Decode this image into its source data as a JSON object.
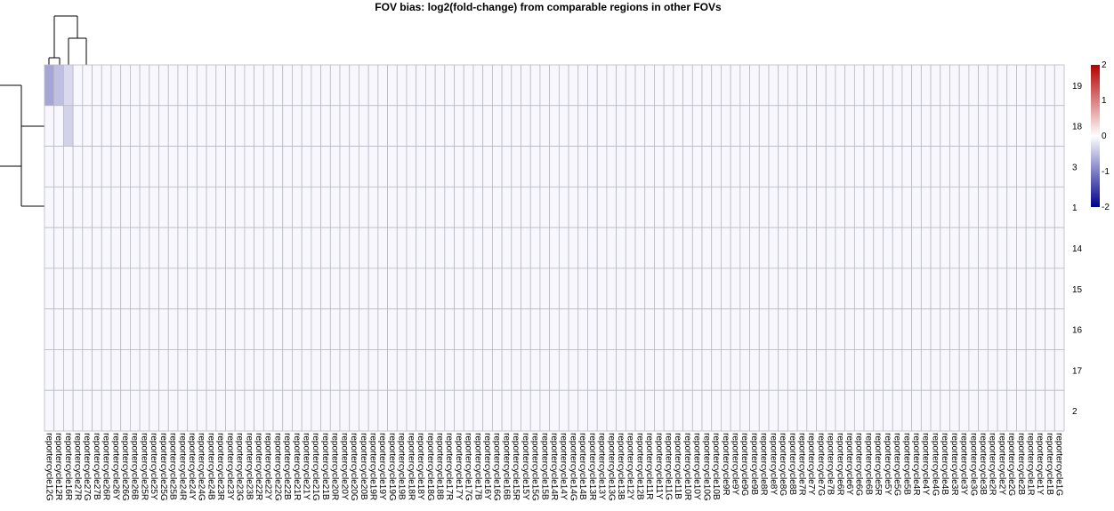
{
  "chart_data": {
    "type": "heatmap",
    "title": "FOV bias: log2(fold-change) from comparable regions in other FOVs",
    "rows": [
      "19",
      "18",
      "3",
      "1",
      "14",
      "15",
      "16",
      "17",
      "2"
    ],
    "columns": [
      "reportercycle12G",
      "reportercycle12R",
      "reportercycle16R",
      "reportercycle27R",
      "reportercycle27G",
      "reportercycle27B",
      "reportercycle26R",
      "reportercycle26Y",
      "reportercycle26G",
      "reportercycle26B",
      "reportercycle25R",
      "reportercycle25Y",
      "reportercycle25G",
      "reportercycle25B",
      "reportercycle24R",
      "reportercycle24Y",
      "reportercycle24G",
      "reportercycle24B",
      "reportercycle23R",
      "reportercycle23Y",
      "reportercycle23G",
      "reportercycle23B",
      "reportercycle22R",
      "reportercycle22Y",
      "reportercycle22G",
      "reportercycle22B",
      "reportercycle21R",
      "reportercycle21Y",
      "reportercycle21G",
      "reportercycle21B",
      "reportercycle20R",
      "reportercycle20Y",
      "reportercycle20G",
      "reportercycle20B",
      "reportercycle19R",
      "reportercycle19Y",
      "reportercycle19G",
      "reportercycle19B",
      "reportercycle18R",
      "reportercycle18Y",
      "reportercycle18G",
      "reportercycle18B",
      "reportercycle17R",
      "reportercycle17Y",
      "reportercycle17G",
      "reportercycle17B",
      "reportercycle16Y",
      "reportercycle16G",
      "reportercycle16B",
      "reportercycle15R",
      "reportercycle15Y",
      "reportercycle15G",
      "reportercycle15B",
      "reportercycle14R",
      "reportercycle14Y",
      "reportercycle14G",
      "reportercycle14B",
      "reportercycle13R",
      "reportercycle13Y",
      "reportercycle13G",
      "reportercycle13B",
      "reportercycle12Y",
      "reportercycle12B",
      "reportercycle11R",
      "reportercycle11Y",
      "reportercycle11G",
      "reportercycle11B",
      "reportercycle10R",
      "reportercycle10Y",
      "reportercycle10G",
      "reportercycle10B",
      "reportercycle9R",
      "reportercycle9Y",
      "reportercycle9G",
      "reportercycle9B",
      "reportercycle8R",
      "reportercycle8Y",
      "reportercycle8G",
      "reportercycle8B",
      "reportercycle7R",
      "reportercycle7Y",
      "reportercycle7G",
      "reportercycle7B",
      "reportercycle6R",
      "reportercycle6Y",
      "reportercycle6G",
      "reportercycle6B",
      "reportercycle5R",
      "reportercycle5Y",
      "reportercycle5G",
      "reportercycle5B",
      "reportercycle4R",
      "reportercycle4Y",
      "reportercycle4G",
      "reportercycle4B",
      "reportercycle3R",
      "reportercycle3Y",
      "reportercycle3G",
      "reportercycle3B",
      "reportercycle2R",
      "reportercycle2Y",
      "reportercycle2G",
      "reportercycle2B",
      "reportercycle1R",
      "reportercycle1Y",
      "reportercycle1B",
      "reportercycle1G"
    ],
    "nonzero_cells": [
      {
        "row": "19",
        "column": "reportercycle12G",
        "value": -0.7
      },
      {
        "row": "19",
        "column": "reportercycle12R",
        "value": -0.5
      },
      {
        "row": "19",
        "column": "reportercycle16R",
        "value": -0.3
      },
      {
        "row": "18",
        "column": "reportercycle16R",
        "value": -0.35
      }
    ],
    "default_value": 0,
    "color_scale": {
      "min": -2,
      "max": 2,
      "low": "#00008b",
      "mid": "#ffffff",
      "high": "#b30000"
    },
    "legend_ticks": [
      "2",
      "1",
      "0",
      "-1",
      "-2"
    ]
  }
}
